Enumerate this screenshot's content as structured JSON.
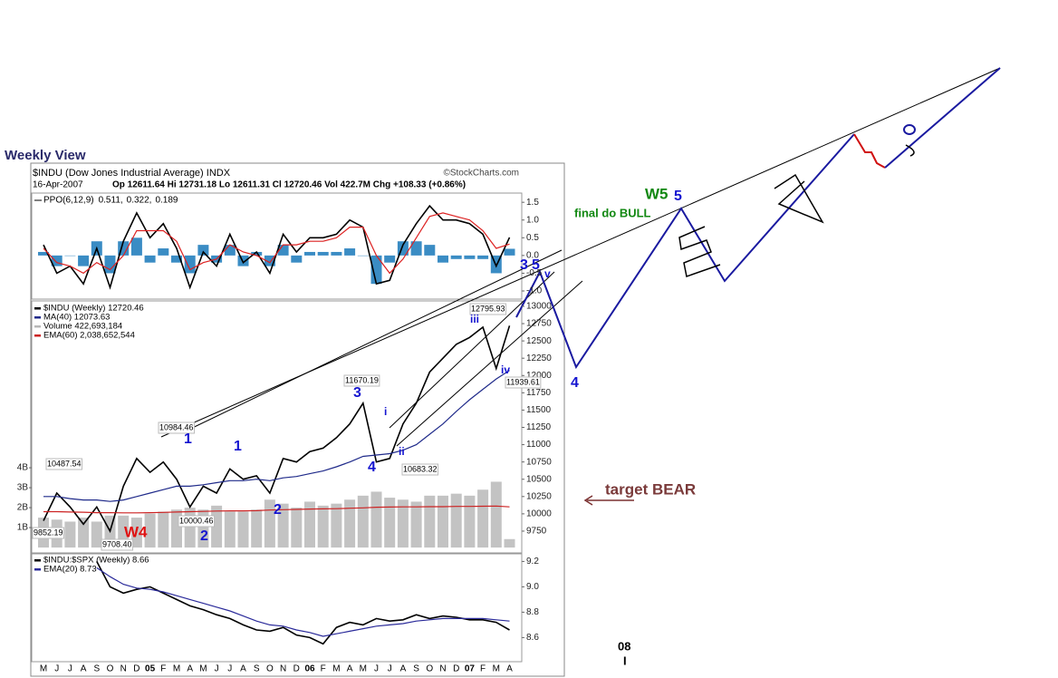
{
  "page": {
    "title": "Weekly View"
  },
  "header": {
    "symbol": "$INDU (Dow Jones Industrial Average) INDX",
    "source": "©StockCharts.com",
    "date": "16-Apr-2007",
    "quote": "Op 12611.64  Hi 12731.18  Lo 12611.31  Cl 12720.46  Vol 422.7M  Chg +108.33 (+0.86%)"
  },
  "chart_data": [
    {
      "type": "line",
      "title": "PPO(6,12,9)",
      "ylim": [
        -1.23,
        1.76
      ],
      "yticks": [
        1.5,
        {
          "value": 1,
          "label": "1.0"
        },
        0.5,
        {
          "value": 0,
          "label": "0.0"
        },
        -0.5,
        {
          "value": -1,
          "label": "-1.0"
        }
      ],
      "series": [
        {
          "name": "0.511,",
          "color": "#000000",
          "values": [
            0.3,
            -0.5,
            -0.3,
            -0.8,
            0.2,
            -0.9,
            0.4,
            1.2,
            0.5,
            0.9,
            0.2,
            -0.9,
            0.1,
            -0.3,
            0.6,
            -0.2,
            0.1,
            -0.5,
            0.6,
            0.1,
            0.5,
            0.5,
            0.6,
            1.0,
            0.8,
            -0.8,
            -0.7,
            0.3,
            0.9,
            1.4,
            1.0,
            1.0,
            0.9,
            0.6,
            -0.3,
            0.511
          ]
        },
        {
          "name": "0.322,",
          "color": "#dd2222",
          "values": [
            0.2,
            -0.2,
            -0.3,
            -0.5,
            -0.2,
            -0.4,
            0.0,
            0.7,
            0.7,
            0.7,
            0.4,
            -0.4,
            -0.2,
            -0.1,
            0.3,
            0.1,
            0.0,
            -0.2,
            0.3,
            0.3,
            0.4,
            0.4,
            0.5,
            0.8,
            0.8,
            0.0,
            -0.5,
            -0.1,
            0.5,
            1.1,
            1.2,
            1.1,
            1.0,
            0.7,
            0.2,
            0.322
          ]
        },
        {
          "name": "0.189",
          "color": "#3a8cc4",
          "type": "bar",
          "values": [
            0.1,
            -0.3,
            0.0,
            -0.3,
            0.4,
            -0.5,
            0.4,
            0.5,
            -0.2,
            0.2,
            -0.2,
            -0.5,
            0.3,
            -0.2,
            0.3,
            -0.3,
            0.1,
            -0.3,
            0.3,
            -0.2,
            0.1,
            0.1,
            0.1,
            0.2,
            0.0,
            -0.8,
            -0.2,
            0.4,
            0.4,
            0.3,
            -0.2,
            -0.1,
            -0.1,
            -0.1,
            -0.5,
            0.189
          ]
        }
      ]
    },
    {
      "type": "line",
      "ylim": [
        9435,
        13065
      ],
      "yticks": [
        13000,
        12750,
        12500,
        12250,
        12000,
        11750,
        11500,
        11250,
        11000,
        10750,
        10500,
        10250,
        10000,
        9750
      ],
      "y2lim": [
        -0.27,
        12.32
      ],
      "y2ticks": [
        {
          "value": 4,
          "label": "4B"
        },
        {
          "value": 3,
          "label": "3B"
        },
        {
          "value": 2,
          "label": "2B"
        },
        {
          "value": 1,
          "label": "1B"
        }
      ],
      "series": [
        {
          "name": "$INDU (Weekly) 12720.46",
          "color": "#000000",
          "values": [
            9900,
            10300,
            10100,
            9850,
            10100,
            9750,
            10400,
            10800,
            10600,
            10750,
            10500,
            10100,
            10400,
            10300,
            10650,
            10500,
            10550,
            10300,
            10800,
            10750,
            10900,
            10950,
            11100,
            11300,
            11600,
            10750,
            10800,
            11300,
            11600,
            12050,
            12250,
            12450,
            12550,
            12700,
            12100,
            12720.46
          ]
        },
        {
          "name": "MA(40) 12073.63",
          "color": "#1f2a8a",
          "values": [
            10250,
            10250,
            10220,
            10200,
            10200,
            10180,
            10200,
            10250,
            10300,
            10350,
            10400,
            10400,
            10420,
            10450,
            10480,
            10480,
            10500,
            10480,
            10520,
            10540,
            10580,
            10620,
            10680,
            10750,
            10830,
            10850,
            10870,
            10920,
            11000,
            11150,
            11300,
            11480,
            11650,
            11800,
            11950,
            12073.63
          ]
        },
        {
          "name": "Volume 422,693,184",
          "color": "#b8b8b8",
          "type": "bar",
          "axis": "y2",
          "values": [
            1.5,
            1.4,
            1.3,
            1.5,
            1.3,
            1.6,
            1.6,
            1.5,
            1.7,
            1.8,
            1.9,
            2.0,
            1.9,
            2.1,
            1.8,
            1.8,
            1.9,
            2.4,
            2.2,
            2.0,
            2.3,
            2.1,
            2.2,
            2.4,
            2.6,
            2.8,
            2.5,
            2.4,
            2.3,
            2.6,
            2.6,
            2.7,
            2.6,
            2.9,
            3.3,
            0.422693184
          ]
        },
        {
          "name": "EMA(60) 2,038,652,544",
          "color": "#cc2222",
          "axis": "y2",
          "values": [
            1.8,
            1.8,
            1.78,
            1.77,
            1.75,
            1.75,
            1.74,
            1.74,
            1.75,
            1.76,
            1.78,
            1.8,
            1.81,
            1.83,
            1.84,
            1.84,
            1.85,
            1.88,
            1.9,
            1.91,
            1.93,
            1.94,
            1.95,
            1.97,
            1.99,
            2.02,
            2.03,
            2.04,
            2.04,
            2.05,
            2.05,
            2.06,
            2.06,
            2.07,
            2.08,
            2.038652544
          ]
        }
      ]
    },
    {
      "type": "line",
      "categories": [
        "M",
        "J",
        "J",
        "A",
        "S",
        "O",
        "N",
        "D",
        "05",
        "F",
        "M",
        "A",
        "M",
        "J",
        "J",
        "A",
        "S",
        "O",
        "N",
        "D",
        "06",
        "F",
        "M",
        "A",
        "M",
        "J",
        "J",
        "A",
        "S",
        "O",
        "N",
        "D",
        "07",
        "F",
        "M",
        "A"
      ],
      "ylim": [
        8.41,
        9.26
      ],
      "yticks": [
        9.2,
        {
          "value": 9,
          "label": "9.0"
        },
        8.8,
        8.6
      ],
      "series": [
        {
          "name": "$INDU:$SPX (Weekly) 8.66",
          "color": "#000000",
          "values": [
            null,
            null,
            null,
            null,
            9.2,
            9.0,
            8.95,
            8.98,
            9.0,
            8.95,
            8.9,
            8.85,
            8.82,
            8.78,
            8.75,
            8.7,
            8.66,
            8.65,
            8.68,
            8.62,
            8.6,
            8.55,
            8.68,
            8.72,
            8.7,
            8.75,
            8.73,
            8.74,
            8.78,
            8.75,
            8.77,
            8.76,
            8.74,
            8.74,
            8.72,
            8.66
          ]
        },
        {
          "name": "EMA(20) 8.73",
          "color": "#2a2a9a",
          "values": [
            null,
            null,
            null,
            null,
            9.15,
            9.08,
            9.02,
            8.99,
            8.98,
            8.96,
            8.93,
            8.9,
            8.87,
            8.84,
            8.81,
            8.77,
            8.73,
            8.7,
            8.69,
            8.66,
            8.64,
            8.61,
            8.63,
            8.65,
            8.67,
            8.69,
            8.7,
            8.71,
            8.73,
            8.74,
            8.75,
            8.75,
            8.75,
            8.75,
            8.74,
            8.73
          ]
        }
      ]
    }
  ],
  "annotations": [
    "10984.46",
    "10487.54",
    "9852.19",
    "9708.40",
    "10000.46",
    "11670.19",
    "10683.32",
    "12795.93",
    "11939.61",
    "1",
    "1",
    "2",
    "2",
    "3",
    "4",
    "W4",
    "i",
    "ii",
    "iii",
    "iv",
    "3",
    "5",
    "v",
    "W5",
    "5",
    "4",
    "final do BULL",
    "target BEAR",
    "08",
    "I"
  ]
}
